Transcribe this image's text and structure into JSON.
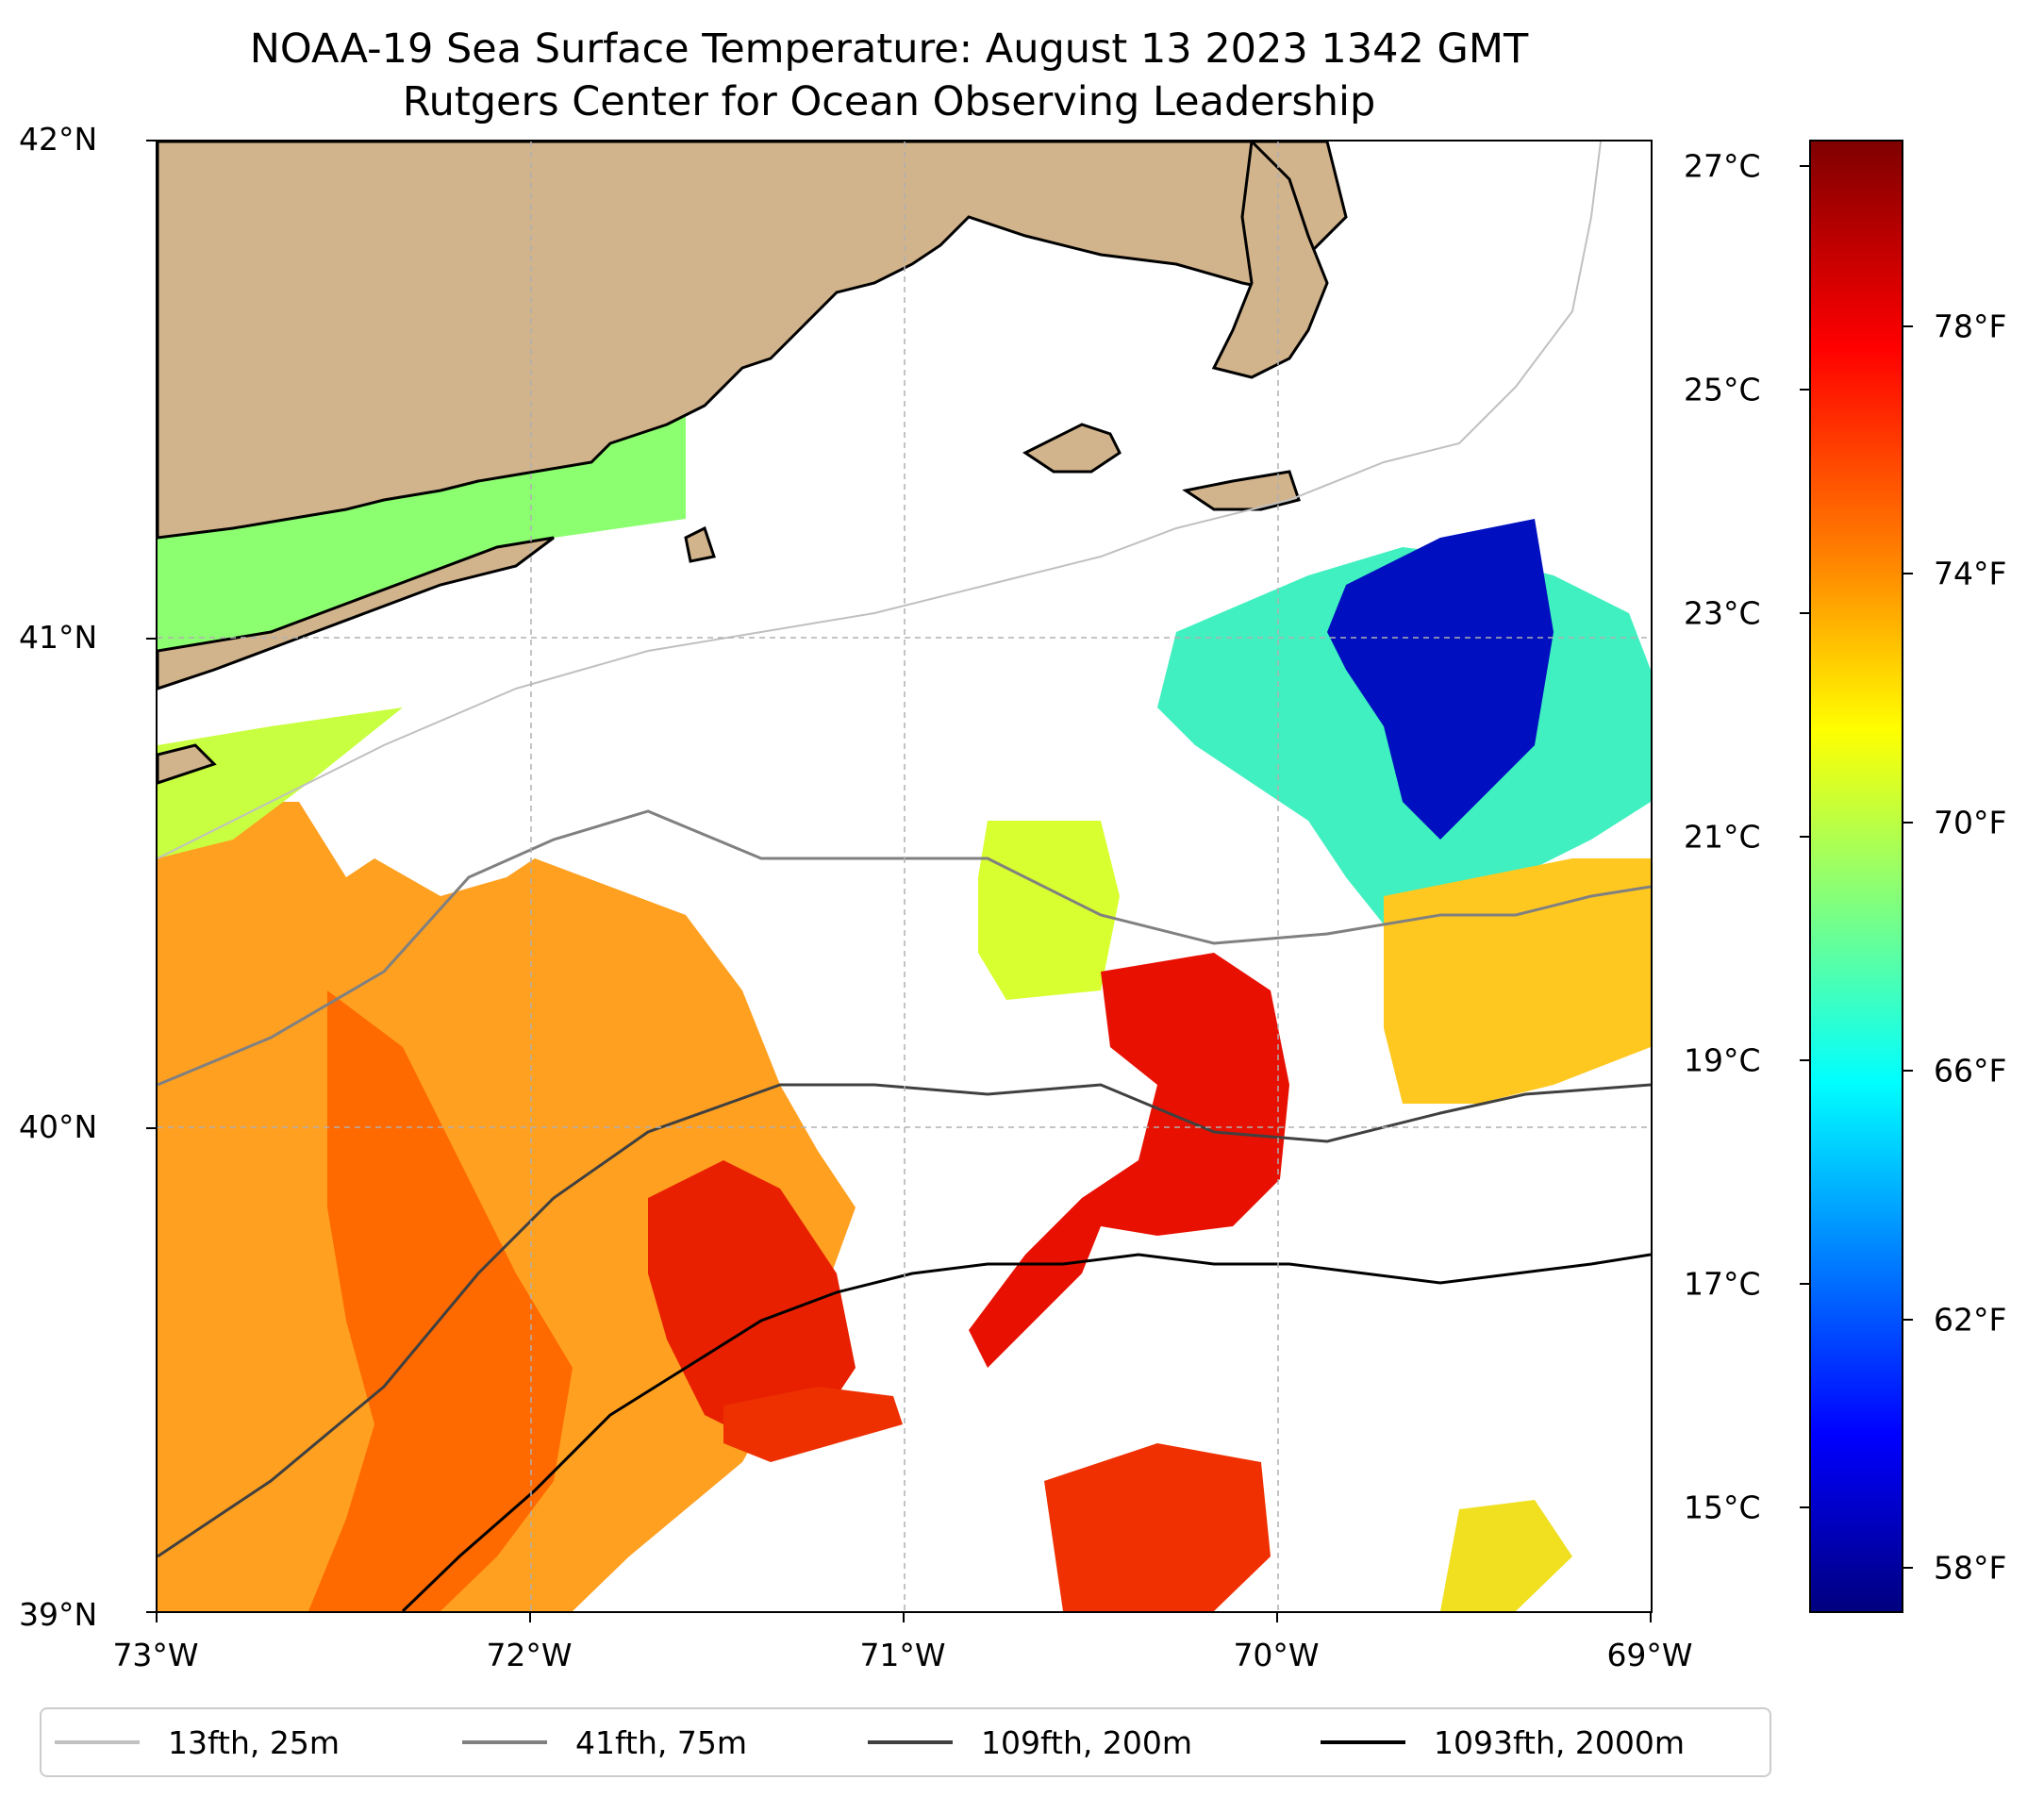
{
  "title": {
    "line1": "NOAA-19 Sea Surface Temperature: August 13 2023 1342 GMT",
    "line2": "Rutgers Center for Ocean Observing Leadership"
  },
  "axes": {
    "lat_labels": [
      "42°N",
      "41°N",
      "40°N",
      "39°N"
    ],
    "lon_labels": [
      "73°W",
      "72°W",
      "71°W",
      "70°W",
      "69°W"
    ]
  },
  "colorbar": {
    "celsius_labels": [
      "27°C",
      "25°C",
      "23°C",
      "21°C",
      "19°C",
      "17°C",
      "15°C"
    ],
    "fahrenheit_labels": [
      "78°F",
      "74°F",
      "70°F",
      "66°F",
      "62°F",
      "58°F"
    ],
    "colormap": "jet"
  },
  "legend": {
    "items": [
      {
        "label": "13fth, 25m",
        "color": "#c0c0c0"
      },
      {
        "label": "41fth, 75m",
        "color": "#808080"
      },
      {
        "label": "109fth, 200m",
        "color": "#404040"
      },
      {
        "label": "1093fth, 2000m",
        "color": "#000000"
      }
    ]
  },
  "colors": {
    "land": "#d2b48c",
    "cold": "#0010c0",
    "cool": "#30e0d0",
    "mild": "#90ff60",
    "warm": "#ffc000",
    "hot": "#ff6000",
    "hottest": "#e81000"
  }
}
